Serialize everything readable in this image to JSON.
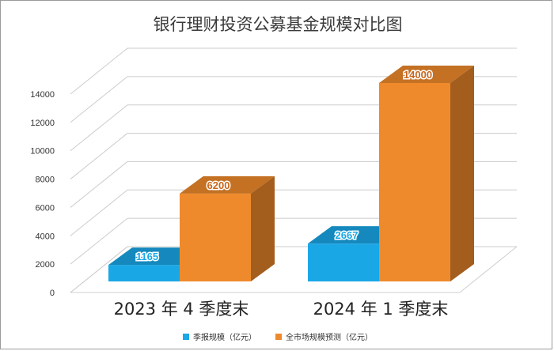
{
  "chart_data": {
    "type": "bar",
    "title": "银行理财投资公募基金规模对比图",
    "categories": [
      "2023 年 4 季度末",
      "2024 年 1 季度末"
    ],
    "series": [
      {
        "name": "季报规模（亿元）",
        "values": [
          1165,
          2667
        ],
        "color": "#1aa7e6",
        "label_color": "#1aa7e6"
      },
      {
        "name": "全市场规模预测（亿元）",
        "values": [
          6200,
          14000
        ],
        "color": "#ef8a2c",
        "label_color": "#c8661a"
      }
    ],
    "yticks": [
      0,
      2000,
      4000,
      6000,
      8000,
      10000,
      12000,
      14000
    ],
    "ylim": [
      0,
      16000
    ],
    "grid": true,
    "legend_position": "bottom-center",
    "three_d": true
  }
}
